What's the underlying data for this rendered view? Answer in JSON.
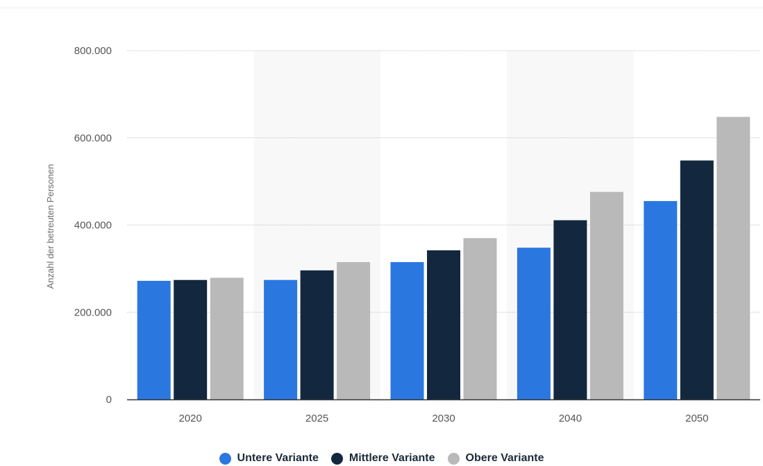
{
  "chart_data": {
    "type": "bar",
    "title": "",
    "xlabel": "",
    "ylabel": "Anzahl der betreuten Personen",
    "categories": [
      "2020",
      "2025",
      "2030",
      "2040",
      "2050"
    ],
    "ylim": [
      0,
      800000
    ],
    "yticks": [
      0,
      200000,
      400000,
      600000,
      800000
    ],
    "ytick_labels": [
      "0",
      "200.000",
      "400.000",
      "600.000",
      "800.000"
    ],
    "grid": true,
    "legend_position": "bottom",
    "series": [
      {
        "name": "Untere Variante",
        "color": "#2b77e0",
        "values": [
          272000,
          274000,
          315000,
          348000,
          455000
        ]
      },
      {
        "name": "Mittlere Variante",
        "color": "#13283f",
        "values": [
          274000,
          296000,
          342000,
          411000,
          548000
        ]
      },
      {
        "name": "Obere Variante",
        "color": "#b9b9b9",
        "values": [
          279000,
          315000,
          370000,
          476000,
          648000
        ]
      }
    ]
  }
}
